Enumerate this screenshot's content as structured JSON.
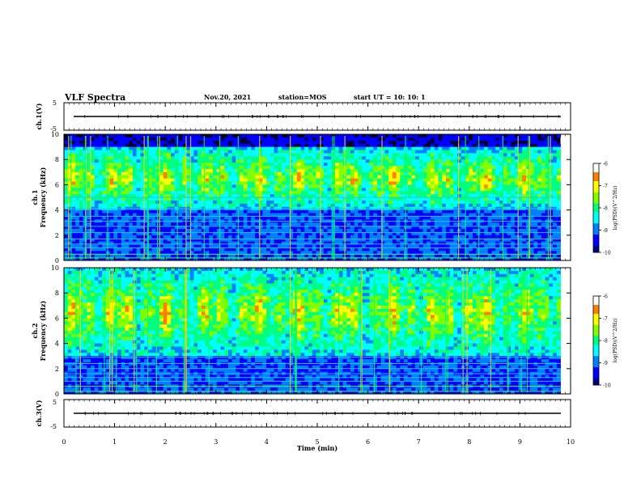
{
  "header": {
    "title": "VLF Spectra",
    "date": "Nov.20, 2021",
    "station": "station=MOS",
    "start": "start UT =  10: 10: 1"
  },
  "colors": {
    "colormap": [
      "#000000",
      "#00008b",
      "#0000ff",
      "#00bfff",
      "#00ff7f",
      "#7fff00",
      "#ffff00",
      "#ff8000",
      "#ff0000",
      "#ffffff"
    ],
    "trace": "#000000"
  },
  "chart_data": [
    {
      "type": "line",
      "name": "ch1-waveform",
      "ylabel": "ch.1(V)",
      "ylim": [
        -5,
        5
      ],
      "yticks": [
        "5",
        "-5"
      ],
      "xlim": [
        0,
        10
      ],
      "series": [
        {
          "x": [
            0,
            10
          ],
          "values": [
            0,
            0
          ]
        }
      ]
    },
    {
      "type": "heatmap",
      "name": "ch1-spectrogram",
      "ylabel": "ch.1\nFrequency (kHz)",
      "ylim": [
        0,
        10
      ],
      "yticks": [
        "0",
        "2",
        "4",
        "6",
        "8",
        "10"
      ],
      "xlim": [
        0,
        10
      ],
      "data_end_min": 9.8,
      "colorbar": {
        "label": "log(PSD)(V^2/Hz)",
        "range": [
          -10,
          -6
        ],
        "ticks": [
          "-6",
          "-7",
          "-8",
          "-9",
          "-10"
        ]
      },
      "dense_band_khz": [
        4,
        9
      ],
      "horizontal_lines_khz": [
        0.2,
        0.5,
        1.0,
        1.3,
        1.7,
        2.2,
        2.7,
        3.1,
        3.5,
        4.1,
        5.0
      ]
    },
    {
      "type": "heatmap",
      "name": "ch2-spectrogram",
      "ylabel": "ch.2\nFrequency (kHz)",
      "ylim": [
        0,
        10
      ],
      "yticks": [
        "0",
        "2",
        "4",
        "6",
        "8",
        "10"
      ],
      "xlim": [
        0,
        10
      ],
      "data_end_min": 9.8,
      "colorbar": {
        "label": "log(PSD)(V^2/Hz)",
        "range": [
          -10,
          -6
        ],
        "ticks": [
          "-6",
          "-7",
          "-8",
          "-9",
          "-10"
        ]
      },
      "dense_band_khz": [
        3,
        10
      ],
      "horizontal_lines_khz": [
        0.2,
        0.6,
        1.0,
        1.3,
        1.6,
        2.0,
        2.4,
        2.9
      ]
    },
    {
      "type": "line",
      "name": "ch3-waveform",
      "ylabel": "ch.3(V)",
      "ylim": [
        -5,
        5
      ],
      "yticks": [
        "5",
        "-5"
      ],
      "xlim": [
        0,
        10
      ],
      "series": [
        {
          "x": [
            0,
            10
          ],
          "values": [
            0,
            0
          ]
        }
      ]
    }
  ],
  "xaxis": {
    "label": "Time (min)",
    "ticks": [
      "0",
      "1",
      "2",
      "3",
      "4",
      "5",
      "6",
      "7",
      "8",
      "9",
      "10"
    ]
  }
}
